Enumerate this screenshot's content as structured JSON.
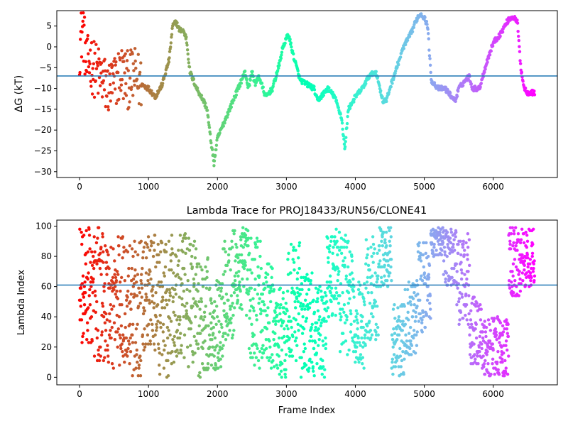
{
  "chart_data": [
    {
      "type": "scatter",
      "title": "",
      "xlabel": "",
      "ylabel": "ΔG (kT)",
      "xlim": [
        -330,
        6930
      ],
      "ylim": [
        -31.4,
        8.7
      ],
      "xticks": [
        0,
        1000,
        2000,
        3000,
        4000,
        5000,
        6000
      ],
      "xtick_labels": [
        "0",
        "1000",
        "2000",
        "3000",
        "4000",
        "5000",
        "6000"
      ],
      "yticks": [
        -30,
        -25,
        -20,
        -15,
        -10,
        -5,
        0,
        5
      ],
      "ytick_labels": [
        "−30",
        "−25",
        "−20",
        "−15",
        "−10",
        "−5",
        "0",
        "5"
      ],
      "hline": -7.0,
      "hline_color": "#1f77b4",
      "colormap": "rainbow (color by frame index, red at 0 → violet at end)",
      "grid": false,
      "series": [
        {
          "name": "",
          "x": [
            0,
            50,
            100,
            150,
            200,
            300,
            400,
            500,
            600,
            700,
            800,
            900,
            1000,
            1100,
            1200,
            1300,
            1350,
            1400,
            1450,
            1500,
            1550,
            1600,
            1700,
            1800,
            1850,
            1900,
            1950,
            2000,
            2100,
            2200,
            2300,
            2350,
            2400,
            2450,
            2500,
            2550,
            2600,
            2700,
            2800,
            2900,
            2950,
            3000,
            3030,
            3100,
            3200,
            3300,
            3400,
            3450,
            3500,
            3600,
            3700,
            3800,
            3850,
            3870,
            3900,
            4000,
            4100,
            4200,
            4300,
            4400,
            4450,
            4500,
            4600,
            4700,
            4800,
            4900,
            4950,
            5000,
            5050,
            5100,
            5200,
            5300,
            5400,
            5450,
            5500,
            5600,
            5650,
            5700,
            5800,
            5900,
            6000,
            6100,
            6200,
            6250,
            6300,
            6350,
            6400,
            6450,
            6500,
            6600
          ],
          "y": [
            0,
            5,
            -5,
            -3,
            -5,
            -7,
            -10,
            -9,
            -6,
            -8,
            -7,
            -9,
            -10,
            -12,
            -9,
            -3,
            5,
            6,
            4,
            4,
            2,
            -6,
            -10,
            -13,
            -15,
            -22,
            -28,
            -22,
            -18,
            -14,
            -10,
            -8,
            -6,
            -10,
            -6,
            -9,
            -7,
            -12,
            -10,
            -4,
            0,
            2,
            3,
            -2,
            -8,
            -9,
            -10,
            -13,
            -12,
            -10,
            -12,
            -17,
            -25,
            -20,
            -15,
            -12,
            -10,
            -7,
            -6,
            -13,
            -13,
            -10,
            -5,
            0,
            3,
            7,
            8,
            7,
            5,
            -8,
            -10,
            -10,
            -12,
            -13,
            -10,
            -8,
            -7,
            -10,
            -10,
            -4,
            1,
            3,
            6,
            7,
            7,
            6,
            -5,
            -10,
            -11,
            -11
          ]
        }
      ]
    },
    {
      "type": "scatter",
      "title": "Lambda Trace for PROJ18433/RUN56/CLONE41",
      "xlabel": "Frame Index",
      "ylabel": "Lambda Index",
      "xlim": [
        -330,
        6930
      ],
      "ylim": [
        -5,
        104
      ],
      "xticks": [
        0,
        1000,
        2000,
        3000,
        4000,
        5000,
        6000
      ],
      "xtick_labels": [
        "0",
        "1000",
        "2000",
        "3000",
        "4000",
        "5000",
        "6000"
      ],
      "yticks": [
        0,
        20,
        40,
        60,
        80,
        100
      ],
      "ytick_labels": [
        "0",
        "20",
        "40",
        "60",
        "80",
        "100"
      ],
      "hline": 61,
      "hline_color": "#1f77b4",
      "colormap": "rainbow (color by frame index, red at 0 → violet at end)",
      "grid": false,
      "series": [
        {
          "name": "",
          "frame_range": [
            0,
            6600
          ],
          "lambda_range": [
            0,
            99
          ],
          "center": [
            60,
            55,
            50,
            50,
            45,
            55,
            45,
            50,
            50,
            40,
            35,
            60,
            70,
            50,
            40,
            30,
            50,
            35,
            30,
            70,
            55,
            35,
            60,
            80,
            25,
            40,
            60,
            90,
            80,
            65,
            30,
            20,
            20,
            75,
            80
          ],
          "spread": [
            40,
            45,
            45,
            45,
            45,
            40,
            45,
            45,
            45,
            40,
            30,
            40,
            30,
            45,
            35,
            30,
            40,
            35,
            30,
            30,
            40,
            30,
            35,
            20,
            25,
            25,
            30,
            10,
            20,
            30,
            25,
            20,
            20,
            25,
            20
          ]
        }
      ]
    }
  ]
}
